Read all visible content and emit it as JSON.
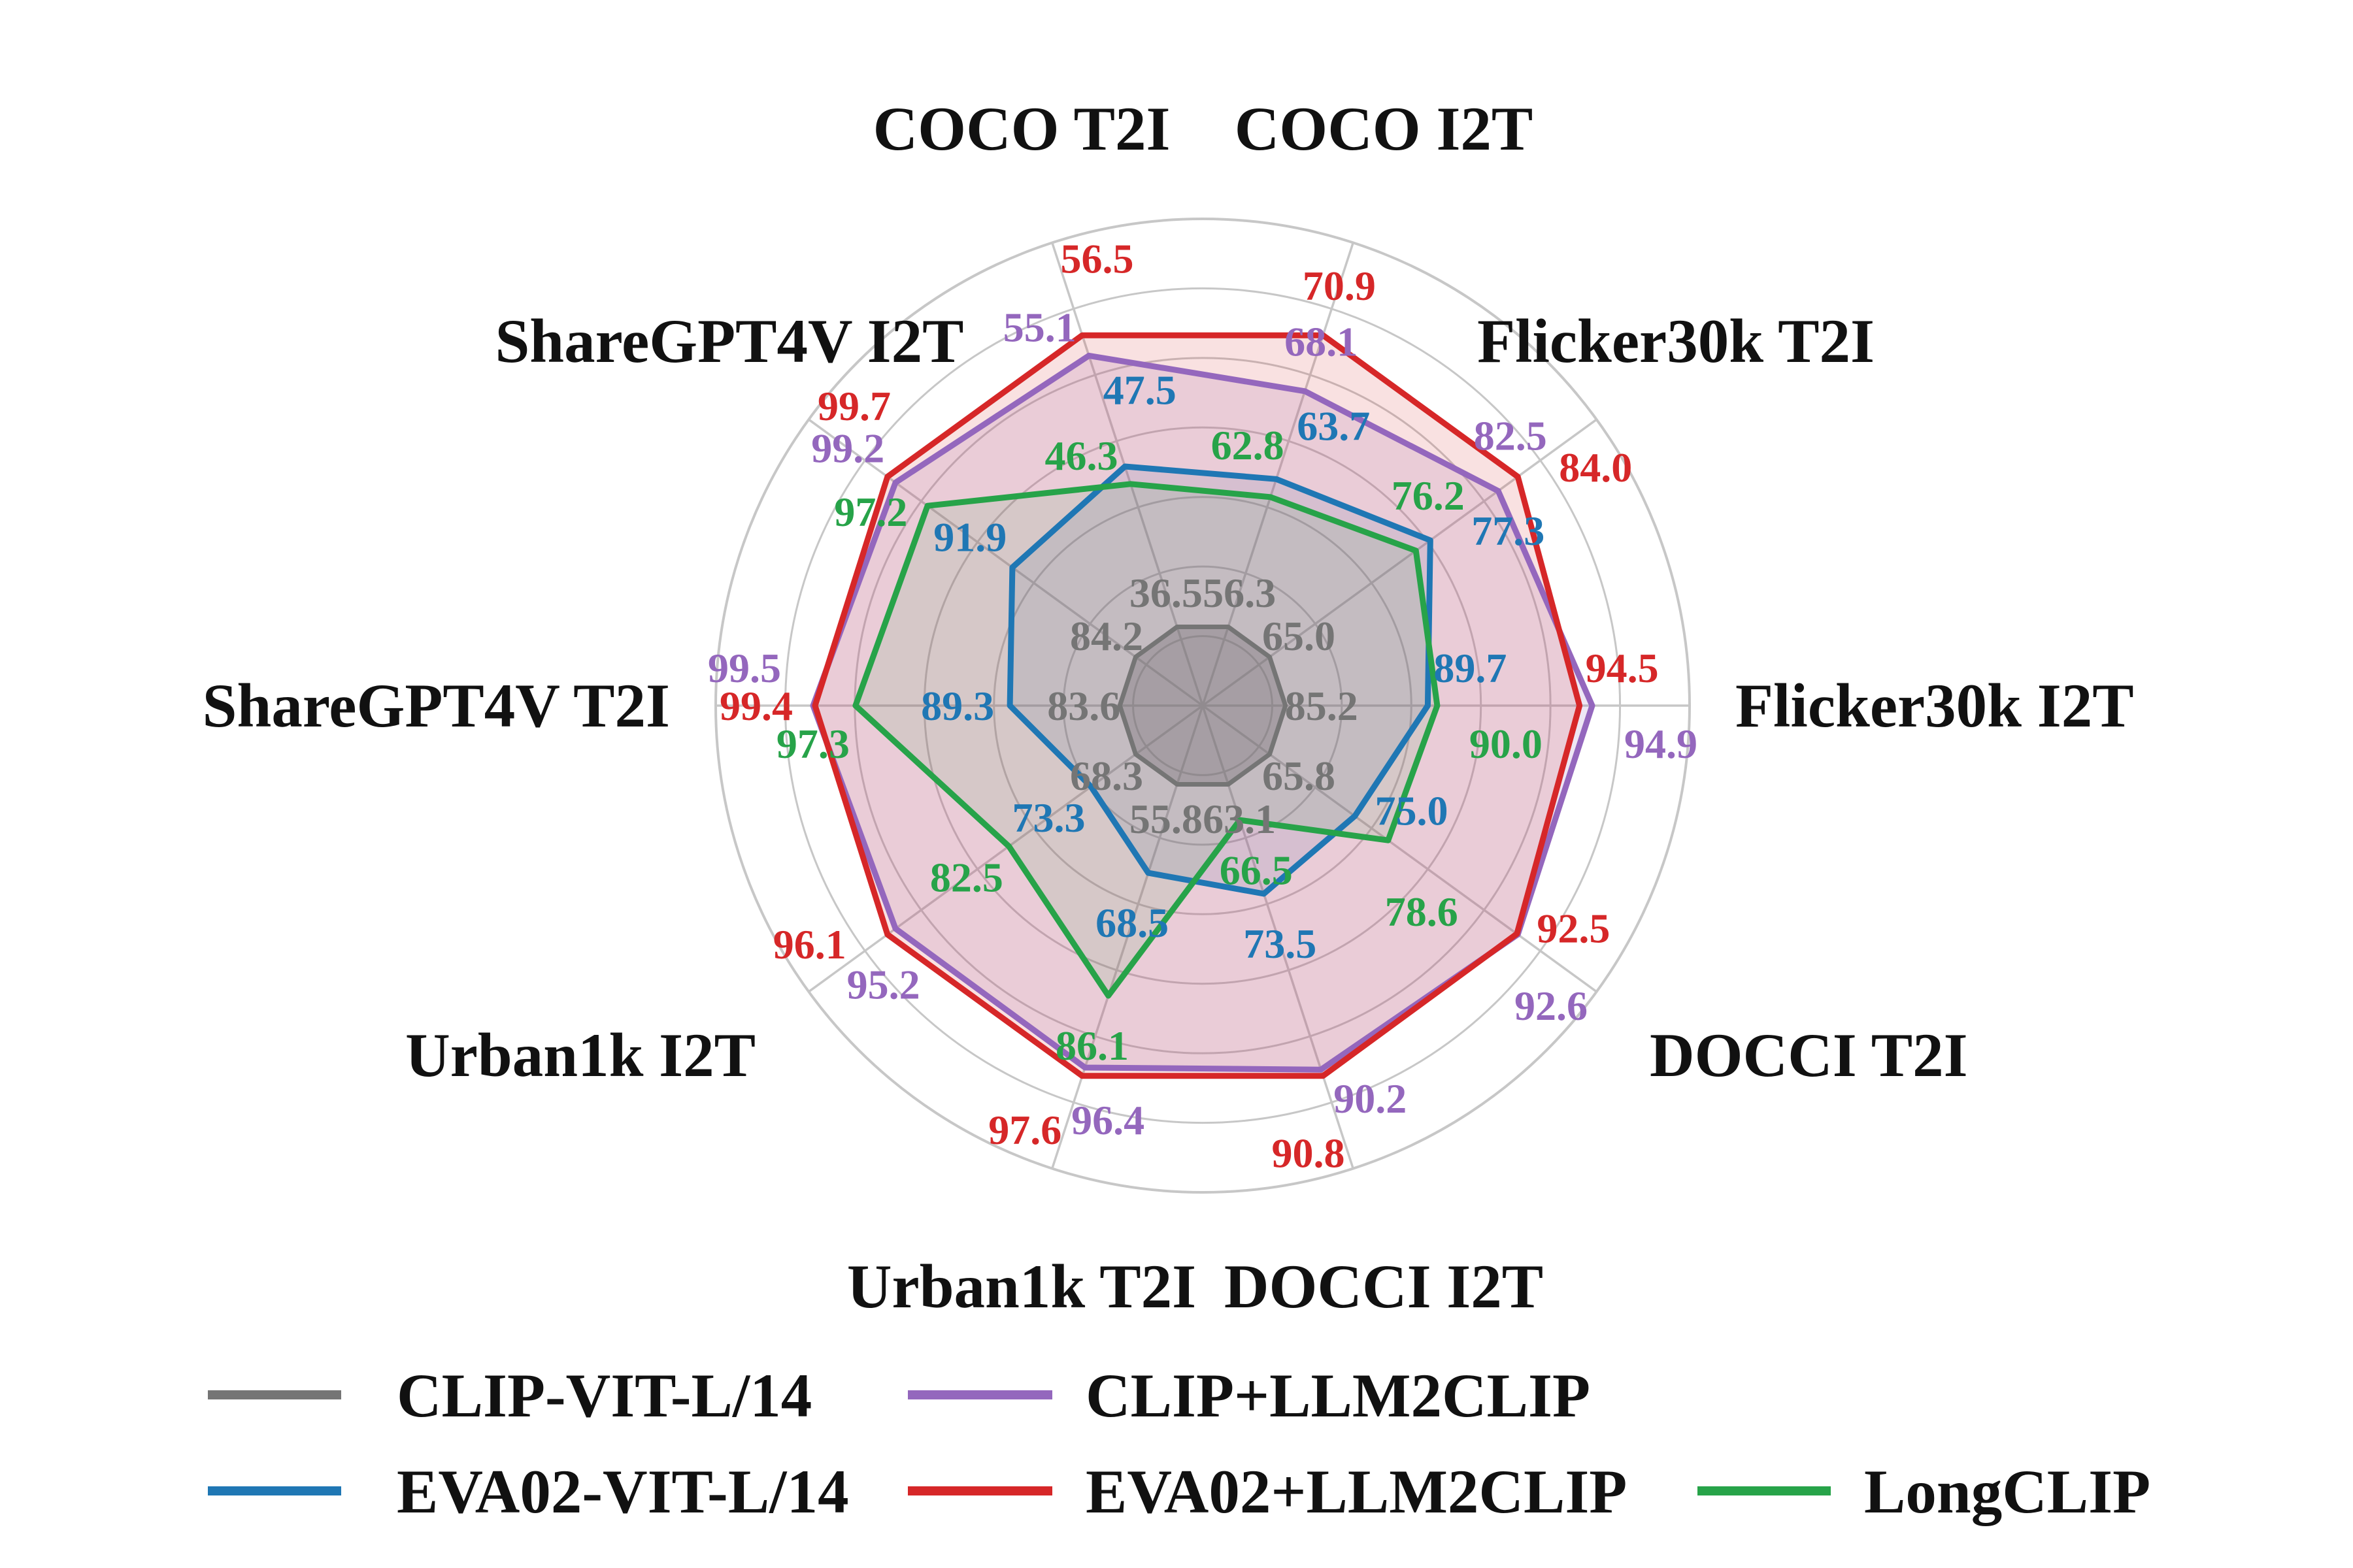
{
  "chart_data": {
    "type": "radar",
    "title": "",
    "axes": [
      "COCO T2I",
      "COCO I2T",
      "Flicker30k T2I",
      "Flicker30k I2T",
      "DOCCI T2I",
      "DOCCI I2T",
      "Urban1k T2I",
      "Urban1k I2T",
      "ShareGPT4V T2I",
      "ShareGPT4V I2T"
    ],
    "axes_angles_deg": [
      108,
      72,
      36,
      0,
      324,
      288,
      252,
      216,
      180,
      144
    ],
    "series": [
      {
        "name": "CLIP-VIT-L/14",
        "color": "#757575",
        "fill_opacity": 0.38,
        "values": [
          36.5,
          56.3,
          65.0,
          85.2,
          65.8,
          63.1,
          55.8,
          68.3,
          83.6,
          84.2
        ]
      },
      {
        "name": "EVA02-VIT-L/14",
        "color": "#1f77b4",
        "fill_opacity": 0.12,
        "values": [
          47.5,
          63.7,
          77.3,
          89.7,
          75.0,
          73.5,
          68.5,
          73.3,
          89.3,
          91.9
        ]
      },
      {
        "name": "CLIP+LLM2CLIP",
        "color": "#9467bd",
        "fill_opacity": 0.16,
        "values": [
          55.1,
          68.1,
          82.5,
          94.9,
          92.6,
          90.2,
          96.4,
          95.2,
          99.5,
          99.2
        ]
      },
      {
        "name": "EVA02+LLM2CLIP",
        "color": "#d62728",
        "fill_opacity": 0.14,
        "values": [
          56.5,
          70.9,
          84.0,
          94.5,
          92.5,
          90.8,
          97.6,
          96.1,
          99.4,
          99.7
        ]
      },
      {
        "name": "LongCLIP",
        "color": "#27a349",
        "fill_opacity": 0.1,
        "values": [
          46.3,
          62.8,
          76.2,
          90.0,
          78.6,
          66.5,
          86.1,
          82.5,
          97.3,
          97.2
        ]
      }
    ],
    "scale_note": "each axis independently normalized; per-axis min plotted near center, per-axis max near outer ring",
    "grid": {
      "rings": 7,
      "color": "#c7c7c7",
      "grid_on": true
    },
    "legend_position": "bottom"
  },
  "legend": {
    "items": [
      {
        "label": "CLIP-VIT-L/14",
        "color": "#757575"
      },
      {
        "label": "EVA02-VIT-L/14",
        "color": "#1f77b4"
      },
      {
        "label": "CLIP+LLM2CLIP",
        "color": "#9467bd"
      },
      {
        "label": "EVA02+LLM2CLIP",
        "color": "#d62728"
      },
      {
        "label": "LongCLIP",
        "color": "#27a349"
      }
    ]
  }
}
